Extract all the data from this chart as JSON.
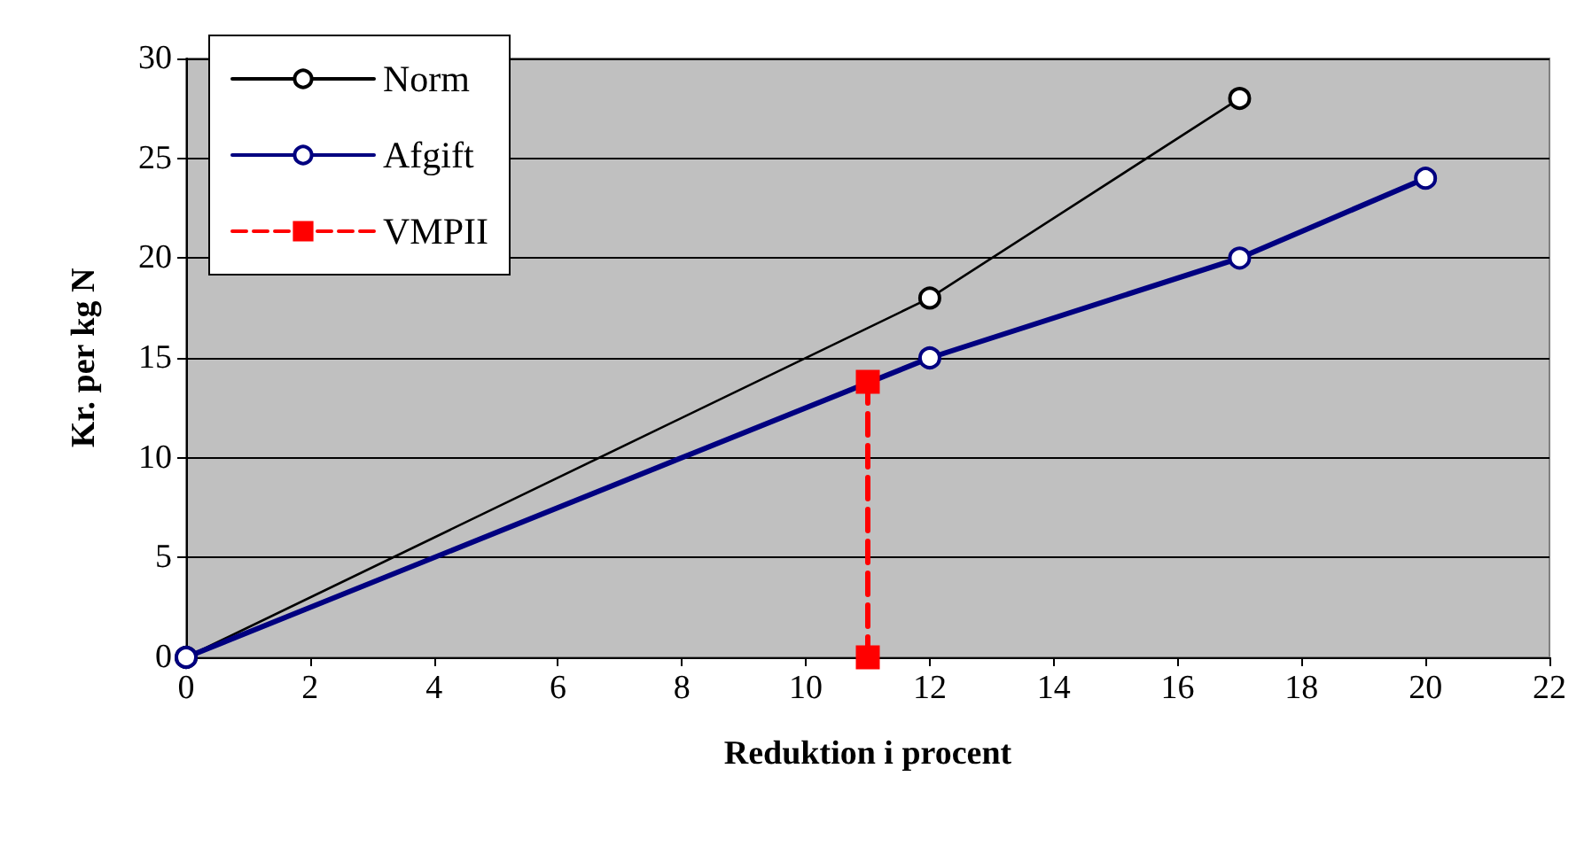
{
  "chart_data": {
    "type": "line",
    "xlabel": "Reduktion i procent",
    "ylabel": "Kr. per kg N",
    "xlim": [
      0,
      22
    ],
    "xticks": [
      0,
      2,
      4,
      6,
      8,
      10,
      12,
      14,
      16,
      18,
      20,
      22
    ],
    "ylim": [
      0,
      30
    ],
    "yticks": [
      0,
      5,
      10,
      15,
      20,
      25,
      30
    ],
    "grid": "y",
    "legend": "top left",
    "series": [
      {
        "name": "Norm",
        "color": "#000000",
        "x": [
          0,
          12,
          17
        ],
        "values": [
          0,
          18,
          28
        ],
        "marker": "circle",
        "line_style": "solid"
      },
      {
        "name": "Afgift",
        "color": "#000080",
        "x": [
          0,
          12,
          17,
          20
        ],
        "values": [
          0,
          15,
          20,
          24
        ],
        "marker": "circle",
        "line_style": "solid"
      },
      {
        "name": "VMPII",
        "color": "#ff0000",
        "x": [
          11,
          11
        ],
        "values": [
          13.8,
          0
        ],
        "marker": "square",
        "line_style": "dashed"
      }
    ]
  }
}
